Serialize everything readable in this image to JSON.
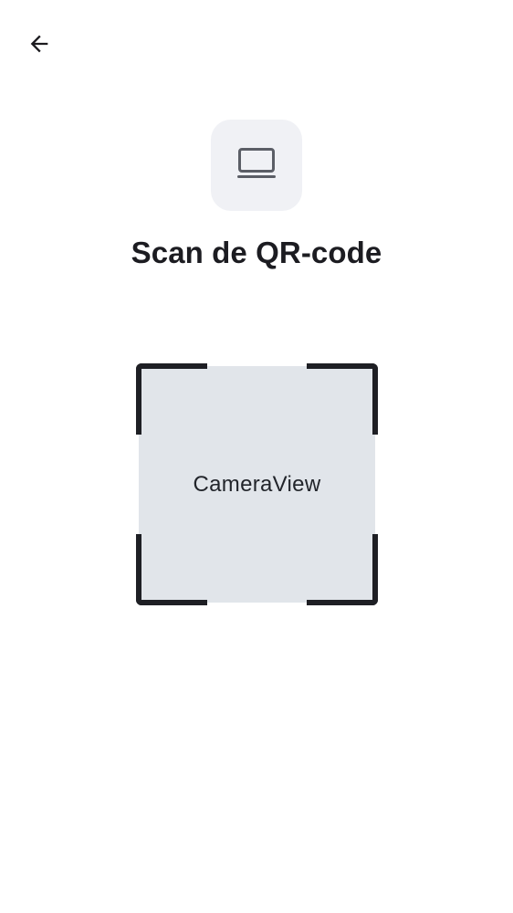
{
  "header": {
    "back_icon": "arrow-left-icon"
  },
  "device": {
    "icon": "laptop-icon"
  },
  "title": "Scan de QR-code",
  "scanner": {
    "camera_label": "CameraView"
  },
  "colors": {
    "background": "#ffffff",
    "tile_background": "#f0f1f5",
    "camera_background": "#e1e5ea",
    "frame": "#1e1f24",
    "text": "#1c1c21"
  }
}
